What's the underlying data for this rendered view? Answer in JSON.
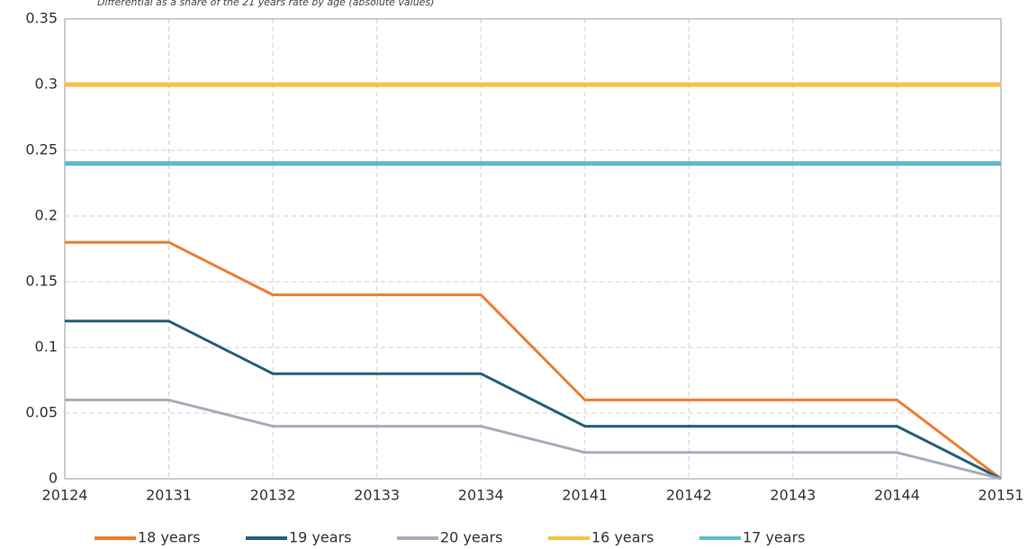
{
  "chart_data": {
    "type": "line",
    "title": "Differential as a share of the 21 years rate by age (absolute values)",
    "categories": [
      "20124",
      "20131",
      "20132",
      "20133",
      "20134",
      "20141",
      "20142",
      "20143",
      "20144",
      "20151"
    ],
    "series": [
      {
        "name": "18 years",
        "color": "#ED7D31",
        "values": [
          0.18,
          0.18,
          0.14,
          0.14,
          0.14,
          0.06,
          0.06,
          0.06,
          0.06,
          0
        ]
      },
      {
        "name": "19 years",
        "color": "#255E79",
        "values": [
          0.12,
          0.12,
          0.08,
          0.08,
          0.08,
          0.04,
          0.04,
          0.04,
          0.04,
          0
        ]
      },
      {
        "name": "20 years",
        "color": "#A5ADBA",
        "values": [
          0.06,
          0.06,
          0.04,
          0.04,
          0.04,
          0.02,
          0.02,
          0.02,
          0.02,
          0
        ]
      },
      {
        "name": "16 years",
        "color": "#F5C342",
        "values": [
          0.3,
          0.3,
          0.3,
          0.3,
          0.3,
          0.3,
          0.3,
          0.3,
          0.3,
          0.3
        ]
      },
      {
        "name": "17 years",
        "color": "#5BBCD0",
        "values": [
          0.24,
          0.24,
          0.24,
          0.24,
          0.24,
          0.24,
          0.24,
          0.24,
          0.24,
          0.24
        ]
      }
    ],
    "ylim": [
      0,
      0.35
    ],
    "yticks": [
      0,
      0.05,
      0.1,
      0.15,
      0.2,
      0.25,
      0.3,
      0.35
    ],
    "grid": true,
    "legend": "bottom"
  }
}
